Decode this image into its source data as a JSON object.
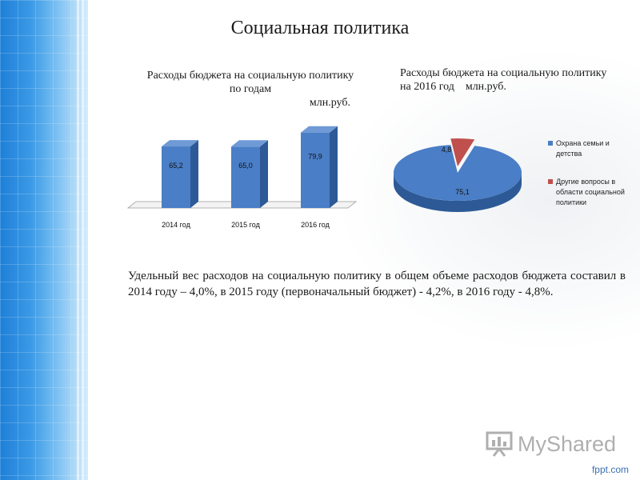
{
  "slide": {
    "title": "Социальная политика",
    "paragraph": "Удельный вес расходов на социальную  политику в общем объеме расходов бюджета составил в 2014 году – 4,0%, в 2015 году (первоначальный бюджет) - 4,2%, в 2016 году -    4,8%.",
    "watermark": "MyShared",
    "footer": "fppt.com"
  },
  "chart_data": [
    {
      "type": "bar",
      "title": "Расходы бюджета на социальную политику  по годам",
      "unit": "млн.руб.",
      "categories": [
        "2014 год",
        "2015 год",
        "2016 год"
      ],
      "values": [
        65.2,
        65.0,
        79.9
      ],
      "data_labels": [
        "65,2",
        "65,0",
        "79,9"
      ],
      "ylim": [
        0,
        100
      ],
      "color": "#4a7ec6",
      "grid": false,
      "legend": "none"
    },
    {
      "type": "pie",
      "title": "Расходы бюджета на социальную политику на 2016 год",
      "unit": "млн.руб.",
      "labels": [
        "Охрана семьи и детства",
        "Другие вопросы в области социальной политики"
      ],
      "values": [
        75.1,
        4.8
      ],
      "data_labels": [
        "75,1",
        "4,8"
      ],
      "colors": [
        "#4a7ec6",
        "#c0504d"
      ],
      "legend": "right"
    }
  ]
}
